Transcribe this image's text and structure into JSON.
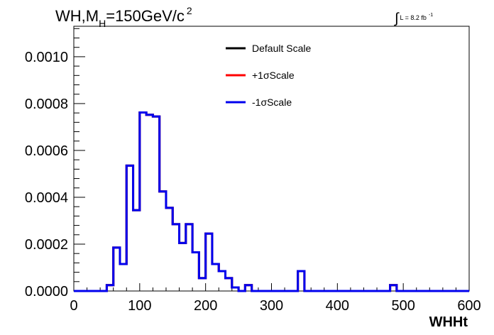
{
  "chart_data": {
    "type": "line",
    "title": {
      "prefix": "WH,M",
      "subscript": "H",
      "value": "=150GeV/c",
      "superscript": "2"
    },
    "luminosity": {
      "symbol": "∫",
      "text": "L = 8.2 fb",
      "superscript": "-1"
    },
    "xlabel": "WHHt",
    "ylabel": "",
    "xlim": [
      0,
      600
    ],
    "ylim": [
      0,
      0.00113
    ],
    "x_ticks": [
      0,
      100,
      200,
      300,
      400,
      500,
      600
    ],
    "x_tick_labels": [
      "0",
      "100",
      "200",
      "300",
      "400",
      "500",
      "600"
    ],
    "y_ticks": [
      0,
      0.0002,
      0.0004,
      0.0006,
      0.0008,
      0.001
    ],
    "y_tick_labels": [
      "0.0000",
      "0.0002",
      "0.0004",
      "0.0006",
      "0.0008",
      "0.0010"
    ],
    "grid": false,
    "legend_position": "top-right",
    "bin_edges": [
      0,
      10,
      20,
      30,
      40,
      50,
      60,
      70,
      80,
      90,
      100,
      110,
      120,
      130,
      140,
      150,
      160,
      170,
      180,
      190,
      200,
      210,
      220,
      230,
      240,
      250,
      260,
      270,
      280,
      290,
      300,
      310,
      320,
      330,
      340,
      350,
      360,
      370,
      380,
      390,
      400,
      410,
      420,
      430,
      440,
      450,
      460,
      470,
      480,
      490,
      500,
      510,
      520,
      530,
      540,
      550,
      560,
      570,
      580,
      590,
      600
    ],
    "series": [
      {
        "name": "Default Scale",
        "color": "#000000",
        "values": [
          0,
          0,
          0,
          0,
          0,
          2.5e-05,
          0.000185,
          0.000115,
          0.000535,
          0.000345,
          0.000762,
          0.000752,
          0.000745,
          0.000425,
          0.000355,
          0.000285,
          0.000205,
          0.000285,
          0.000165,
          5.5e-05,
          0.000245,
          0.000115,
          8.5e-05,
          5.5e-05,
          1.5e-05,
          0,
          2.5e-05,
          0,
          0,
          0,
          0,
          0,
          0,
          0,
          8.5e-05,
          0,
          0,
          0,
          0,
          0,
          0,
          0,
          0,
          0,
          0,
          0,
          0,
          0,
          2.5e-05,
          0,
          0,
          0,
          0,
          0,
          0,
          0,
          0,
          0,
          0,
          0
        ]
      },
      {
        "name": "+1σScale",
        "color": "#ff0000",
        "values": [
          0,
          0,
          0,
          0,
          0,
          2.5e-05,
          0.000185,
          0.000115,
          0.000535,
          0.000345,
          0.000762,
          0.000752,
          0.000745,
          0.000425,
          0.000355,
          0.000285,
          0.000205,
          0.000285,
          0.000165,
          5.5e-05,
          0.000245,
          0.000115,
          8.5e-05,
          5.5e-05,
          1.5e-05,
          0,
          2.5e-05,
          0,
          0,
          0,
          0,
          0,
          0,
          0,
          8.5e-05,
          0,
          0,
          0,
          0,
          0,
          0,
          0,
          0,
          0,
          0,
          0,
          0,
          0,
          2.5e-05,
          0,
          0,
          0,
          0,
          0,
          0,
          0,
          0,
          0,
          0,
          0
        ]
      },
      {
        "name": "-1σScale",
        "color": "#0000ee",
        "values": [
          0,
          0,
          0,
          0,
          0,
          2.5e-05,
          0.000185,
          0.000115,
          0.000535,
          0.000345,
          0.000762,
          0.000752,
          0.000745,
          0.000425,
          0.000355,
          0.000285,
          0.000205,
          0.000285,
          0.000165,
          5.5e-05,
          0.000245,
          0.000115,
          8.5e-05,
          5.5e-05,
          1.5e-05,
          0,
          2.5e-05,
          0,
          0,
          0,
          0,
          0,
          0,
          0,
          8.5e-05,
          0,
          0,
          0,
          0,
          0,
          0,
          0,
          0,
          0,
          0,
          0,
          0,
          0,
          2.5e-05,
          0,
          0,
          0,
          0,
          0,
          0,
          0,
          0,
          0,
          0,
          0
        ]
      }
    ]
  }
}
